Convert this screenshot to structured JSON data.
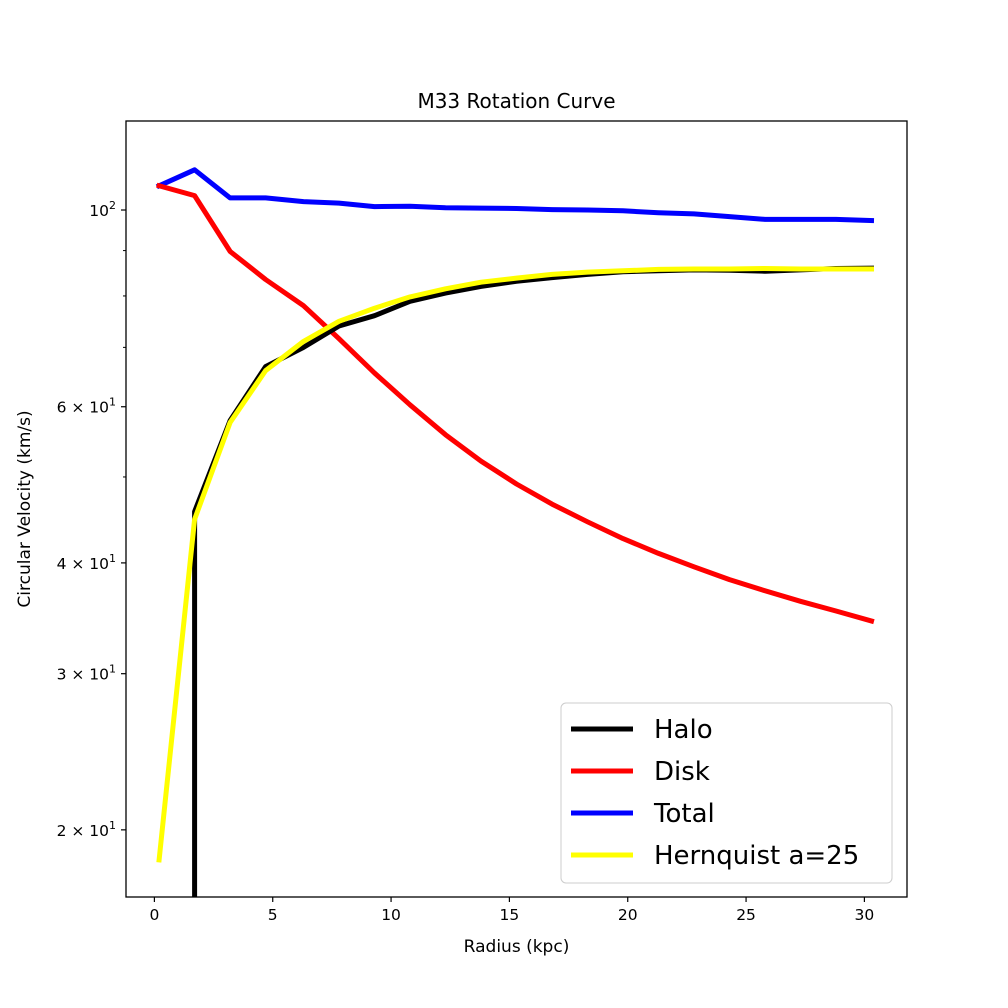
{
  "chart_data": {
    "type": "line",
    "title": "M33 Rotation Curve",
    "xlabel": "Radius (kpc)",
    "ylabel": "Circular Velocity (km/s)",
    "xlim": [
      -1.2,
      31.8
    ],
    "ylim": [
      16.8,
      126
    ],
    "yscale": "log",
    "grid": false,
    "legend_position": "lower-right",
    "x_ticks": [
      {
        "value": 0,
        "label": "0"
      },
      {
        "value": 5,
        "label": "5"
      },
      {
        "value": 10,
        "label": "10"
      },
      {
        "value": 15,
        "label": "15"
      },
      {
        "value": 20,
        "label": "20"
      },
      {
        "value": 25,
        "label": "25"
      },
      {
        "value": 30,
        "label": "30"
      }
    ],
    "y_major_ticks": [
      {
        "value": 100,
        "base": "10",
        "exp": "2"
      },
      {
        "value": 60,
        "base": "6 × 10",
        "exp": "1"
      },
      {
        "value": 40,
        "base": "4 × 10",
        "exp": "1"
      },
      {
        "value": 30,
        "base": "3 × 10",
        "exp": "1"
      },
      {
        "value": 20,
        "base": "2 × 10",
        "exp": "1"
      }
    ],
    "y_minor_ticks": [
      90,
      80,
      70,
      50
    ],
    "series": [
      {
        "name": "Total",
        "color": "#0000ff",
        "x": [
          0.2,
          1.7,
          3.2,
          4.7,
          6.3,
          7.8,
          9.3,
          10.8,
          12.3,
          13.8,
          15.3,
          16.8,
          18.3,
          19.8,
          21.3,
          22.8,
          24.3,
          25.8,
          27.3,
          28.8,
          30.3
        ],
        "y": [
          106.5,
          111.0,
          103.2,
          103.2,
          102.2,
          101.8,
          100.9,
          101.0,
          100.6,
          100.5,
          100.4,
          100.1,
          100.0,
          99.8,
          99.3,
          99.0,
          98.3,
          97.6,
          97.6,
          97.6,
          97.3
        ]
      },
      {
        "name": "Disk",
        "color": "#ff0000",
        "x": [
          0.2,
          1.7,
          3.2,
          4.7,
          6.3,
          7.8,
          9.3,
          10.8,
          12.3,
          13.8,
          15.3,
          16.8,
          18.3,
          19.8,
          21.3,
          22.8,
          24.3,
          25.8,
          27.3,
          28.8,
          30.3
        ],
        "y": [
          106.5,
          103.8,
          89.8,
          83.5,
          78.0,
          71.6,
          65.5,
          60.3,
          55.8,
          52.1,
          49.1,
          46.6,
          44.5,
          42.6,
          41.0,
          39.6,
          38.3,
          37.2,
          36.2,
          35.3,
          34.4
        ]
      },
      {
        "name": "Halo",
        "color": "#000000",
        "x": [
          1.7,
          1.7,
          3.2,
          4.7,
          6.3,
          7.8,
          9.3,
          10.8,
          12.3,
          13.8,
          15.3,
          16.8,
          18.3,
          19.8,
          21.3,
          22.8,
          24.3,
          25.8,
          27.3,
          28.8,
          30.3
        ],
        "y": [
          16.8,
          45.7,
          57.9,
          66.6,
          70.0,
          74.0,
          76.0,
          78.9,
          80.6,
          82.0,
          83.1,
          83.9,
          84.6,
          85.2,
          85.4,
          85.6,
          85.5,
          85.3,
          85.6,
          85.9,
          86.0
        ]
      },
      {
        "name": "Hernquist a=25",
        "color": "#ffff00",
        "x": [
          0.2,
          1.7,
          3.2,
          4.7,
          6.3,
          7.8,
          9.3,
          10.8,
          12.3,
          13.8,
          15.3,
          16.8,
          18.3,
          19.8,
          21.3,
          22.8,
          24.3,
          25.8,
          27.3,
          28.8,
          30.3
        ],
        "y": [
          18.5,
          44.8,
          57.6,
          65.9,
          71.1,
          74.9,
          77.5,
          79.8,
          81.5,
          82.9,
          83.8,
          84.6,
          85.1,
          85.4,
          85.7,
          85.8,
          85.8,
          85.9,
          85.8,
          85.8,
          85.8
        ]
      }
    ],
    "legend": [
      {
        "label": "Halo",
        "color": "#000000"
      },
      {
        "label": "Disk",
        "color": "#ff0000"
      },
      {
        "label": "Total",
        "color": "#0000ff"
      },
      {
        "label": "Hernquist a=25",
        "color": "#ffff00"
      }
    ]
  }
}
